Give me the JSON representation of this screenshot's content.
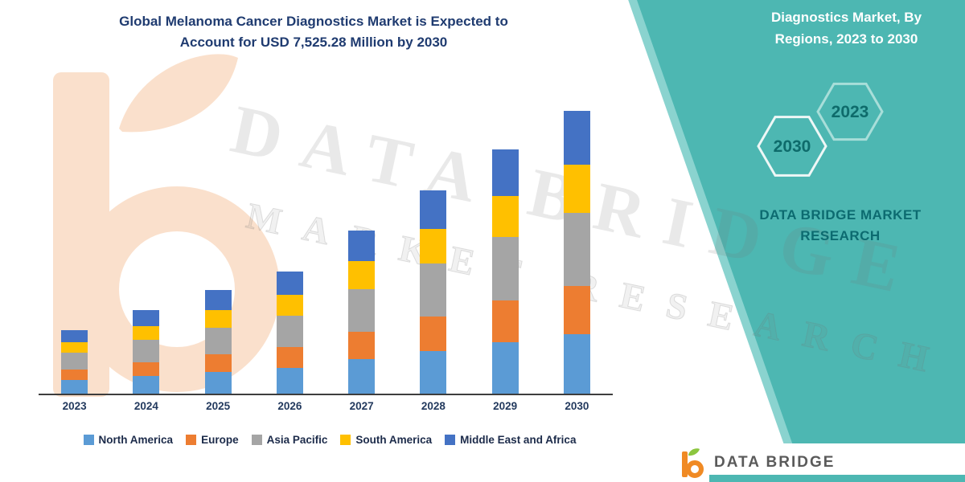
{
  "header": {
    "title_line1": "Global Melanoma Cancer Diagnostics Market is Expected to",
    "title_line2": "Account for USD 7,525.28 Million by 2030"
  },
  "side_panel": {
    "heading_line1": "Diagnostics Market, By",
    "heading_line2": "Regions, 2023 to 2030",
    "hex_back_label": "2030",
    "hex_front_label": "2023",
    "brand_line1": "DATA BRIDGE MARKET",
    "brand_line2": "RESEARCH",
    "panel_color": "#4db7b2"
  },
  "watermark": {
    "line1": "DATA BRIDGE",
    "line2": "MARKET RESEARCH"
  },
  "footer": {
    "brand": "DATA BRIDGE",
    "strip_color": "#4db7b2"
  },
  "chart_data": {
    "type": "bar",
    "stacked": true,
    "title": "Global Melanoma Cancer Diagnostics Market is Expected to Account for USD 7,525.28 Million by 2030",
    "unit": "USD Million",
    "categories": [
      "2023",
      "2024",
      "2025",
      "2026",
      "2027",
      "2028",
      "2029",
      "2030"
    ],
    "series": [
      {
        "name": "North America",
        "color": "#5B9BD5",
        "values": [
          357,
          467,
          578,
          680,
          912,
          1135,
          1366,
          1580
        ]
      },
      {
        "name": "Europe",
        "color": "#ED7D31",
        "values": [
          289,
          378,
          468,
          551,
          739,
          919,
          1106,
          1279
        ]
      },
      {
        "name": "Asia Pacific",
        "color": "#A5A5A5",
        "values": [
          442,
          579,
          715,
          842,
          1130,
          1405,
          1691,
          1957
        ]
      },
      {
        "name": "South America",
        "color": "#FFC000",
        "values": [
          289,
          378,
          468,
          551,
          739,
          919,
          1106,
          1279
        ]
      },
      {
        "name": "Middle East and Africa",
        "color": "#4472C4",
        "values": [
          323,
          423,
          523,
          616,
          826,
          1027,
          1236,
          1430
        ]
      }
    ],
    "totals_estimated": [
      1700,
      2225,
      2752,
      3240,
      4346,
      5405,
      6505,
      7525.28
    ],
    "ylim": [
      0,
      7600
    ],
    "xlabel": "",
    "ylabel": "",
    "grid": false,
    "legend_position": "bottom"
  }
}
